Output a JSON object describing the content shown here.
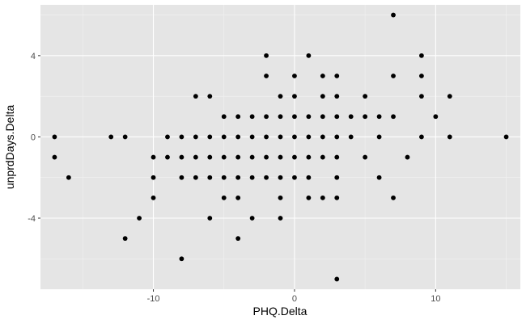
{
  "chart_data": {
    "type": "scatter",
    "title": "",
    "xlabel": "PHQ.Delta",
    "ylabel": "unprdDays.Delta",
    "xlim": [
      -18,
      16
    ],
    "ylim": [
      -7.5,
      6.5
    ],
    "x_ticks": [
      -10,
      0,
      10
    ],
    "x_tick_labels": [
      "-10",
      "0",
      "10"
    ],
    "y_ticks": [
      -4,
      0,
      4
    ],
    "y_tick_labels": [
      "-4",
      "0",
      "4"
    ],
    "grid": true,
    "colors": {
      "panel": "#e5e5e5",
      "grid_major": "#ffffff",
      "grid_minor": "#f2f2f2",
      "point": "#000000"
    },
    "points": [
      [
        -17,
        0
      ],
      [
        -17,
        -1
      ],
      [
        -16,
        -2
      ],
      [
        -13,
        0
      ],
      [
        -12,
        0
      ],
      [
        -12,
        -5
      ],
      [
        -11,
        -4
      ],
      [
        -10,
        -1
      ],
      [
        -10,
        -2
      ],
      [
        -10,
        -3
      ],
      [
        -9,
        0
      ],
      [
        -9,
        -1
      ],
      [
        -8,
        0
      ],
      [
        -8,
        -1
      ],
      [
        -8,
        -2
      ],
      [
        -8,
        -6
      ],
      [
        -7,
        2
      ],
      [
        -7,
        0
      ],
      [
        -7,
        -1
      ],
      [
        -7,
        -2
      ],
      [
        -6,
        2
      ],
      [
        -6,
        0
      ],
      [
        -6,
        -1
      ],
      [
        -6,
        -2
      ],
      [
        -6,
        -4
      ],
      [
        -5,
        1
      ],
      [
        -5,
        0
      ],
      [
        -5,
        -1
      ],
      [
        -5,
        -2
      ],
      [
        -5,
        -3
      ],
      [
        -4,
        1
      ],
      [
        -4,
        0
      ],
      [
        -4,
        -1
      ],
      [
        -4,
        -2
      ],
      [
        -4,
        -3
      ],
      [
        -4,
        -5
      ],
      [
        -3,
        1
      ],
      [
        -3,
        0
      ],
      [
        -3,
        -1
      ],
      [
        -3,
        -2
      ],
      [
        -3,
        -4
      ],
      [
        -2,
        4
      ],
      [
        -2,
        3
      ],
      [
        -2,
        1
      ],
      [
        -2,
        0
      ],
      [
        -2,
        -1
      ],
      [
        -2,
        -2
      ],
      [
        -1,
        2
      ],
      [
        -1,
        1
      ],
      [
        -1,
        0
      ],
      [
        -1,
        -1
      ],
      [
        -1,
        -2
      ],
      [
        -1,
        -3
      ],
      [
        -1,
        -4
      ],
      [
        0,
        3
      ],
      [
        0,
        2
      ],
      [
        0,
        1
      ],
      [
        0,
        0
      ],
      [
        0,
        -1
      ],
      [
        0,
        -2
      ],
      [
        1,
        4
      ],
      [
        1,
        1
      ],
      [
        1,
        0
      ],
      [
        1,
        -1
      ],
      [
        1,
        -2
      ],
      [
        1,
        -3
      ],
      [
        2,
        3
      ],
      [
        2,
        2
      ],
      [
        2,
        1
      ],
      [
        2,
        0
      ],
      [
        2,
        -1
      ],
      [
        2,
        -3
      ],
      [
        3,
        3
      ],
      [
        3,
        2
      ],
      [
        3,
        1
      ],
      [
        3,
        0
      ],
      [
        3,
        -1
      ],
      [
        3,
        -2
      ],
      [
        3,
        -3
      ],
      [
        3,
        -7
      ],
      [
        4,
        1
      ],
      [
        4,
        0
      ],
      [
        5,
        2
      ],
      [
        5,
        1
      ],
      [
        5,
        -1
      ],
      [
        6,
        1
      ],
      [
        6,
        0
      ],
      [
        6,
        -2
      ],
      [
        7,
        6
      ],
      [
        7,
        3
      ],
      [
        7,
        1
      ],
      [
        7,
        -3
      ],
      [
        8,
        -1
      ],
      [
        9,
        4
      ],
      [
        9,
        3
      ],
      [
        9,
        2
      ],
      [
        9,
        0
      ],
      [
        10,
        1
      ],
      [
        11,
        2
      ],
      [
        11,
        0
      ],
      [
        15,
        0
      ]
    ]
  }
}
